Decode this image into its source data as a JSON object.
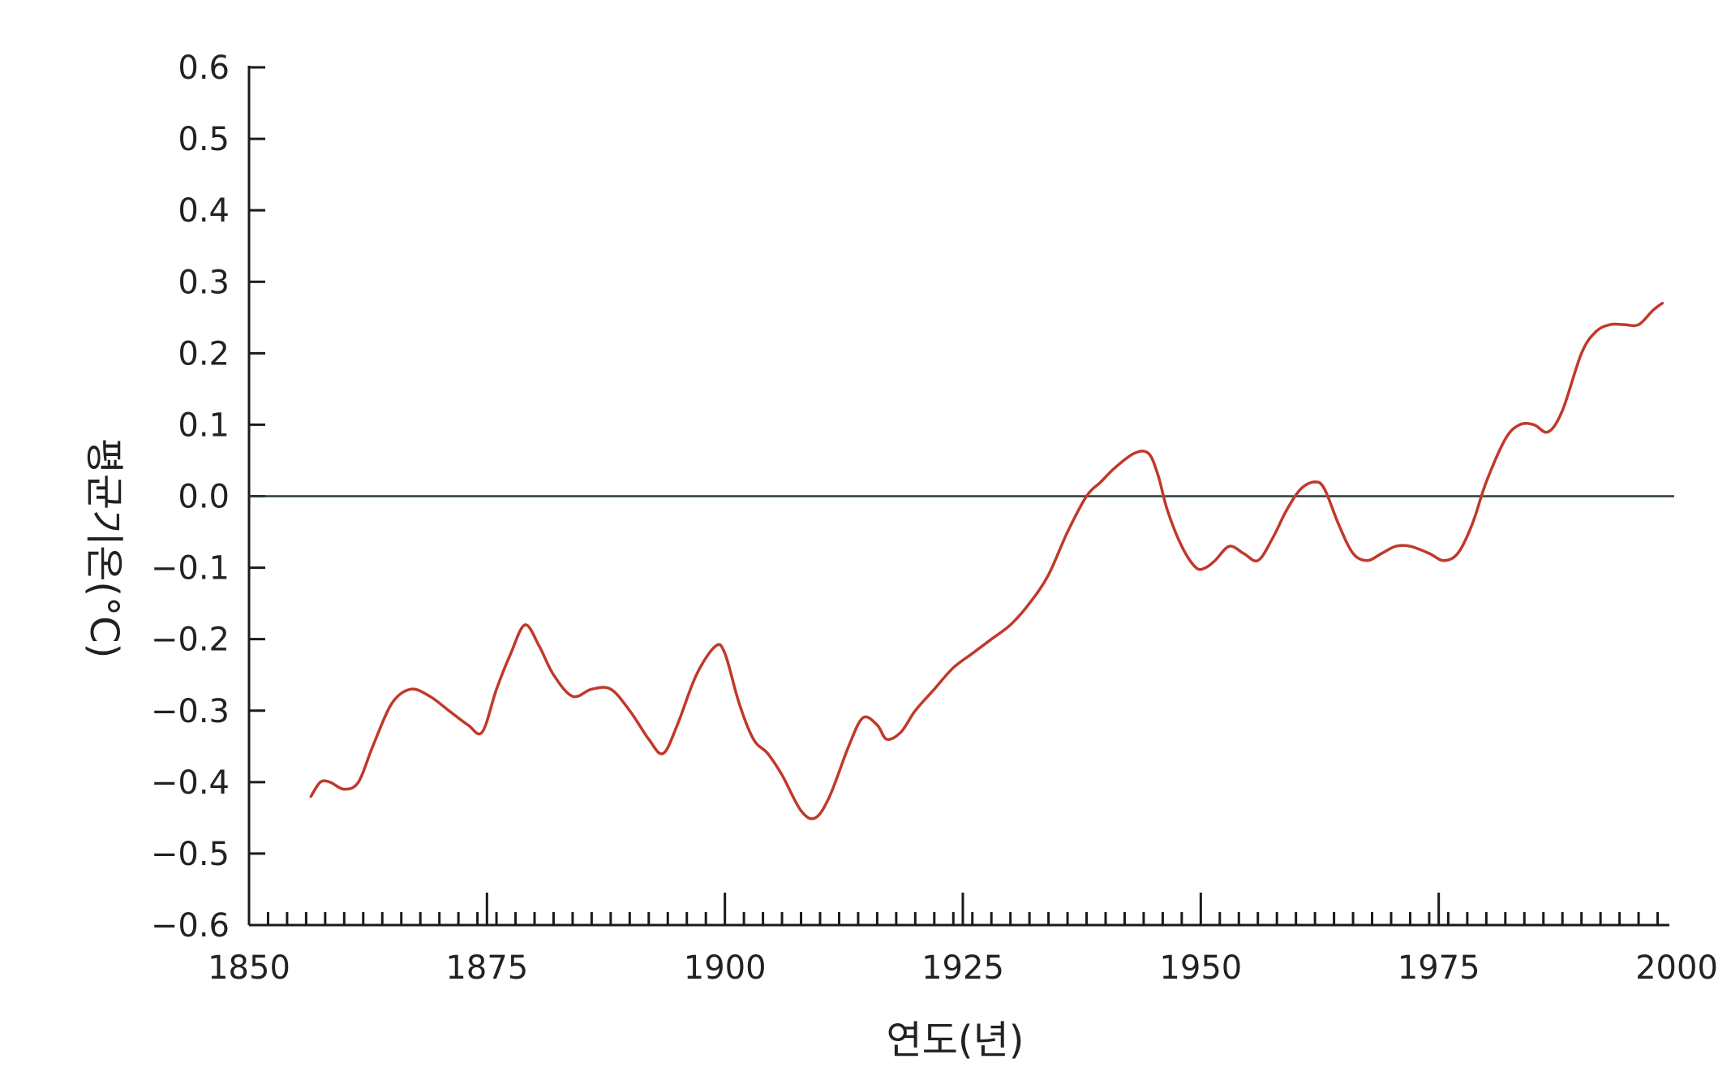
{
  "chart_data": {
    "type": "line",
    "title": "",
    "xlabel": "연도(년)",
    "ylabel": "평균기온(°C)",
    "xlim": [
      1850,
      2000
    ],
    "ylim": [
      -0.6,
      0.6
    ],
    "x_ticks": [
      "1850",
      "1875",
      "1900",
      "1925",
      "1950",
      "1975",
      "2000"
    ],
    "y_ticks": [
      "0.6",
      "0.5",
      "0.4",
      "0.3",
      "0.2",
      "0.1",
      "0.0",
      "−0.1",
      "−0.2",
      "−0.3",
      "−0.4",
      "−0.5",
      "−0.6"
    ],
    "reference_line": 0.0,
    "grid": false,
    "legend": "none",
    "series": [
      {
        "color": "#c0392b",
        "x": [
          1856.5,
          1857.5,
          1858.5,
          1860,
          1861.5,
          1863,
          1865,
          1867,
          1869,
          1871,
          1873,
          1874.5,
          1876,
          1877.5,
          1879,
          1880.5,
          1882,
          1884,
          1886,
          1888,
          1890,
          1892,
          1893.5,
          1895,
          1897,
          1899,
          1900,
          1901.5,
          1903,
          1904.5,
          1906,
          1908,
          1909.5,
          1911,
          1913,
          1914.5,
          1916,
          1917,
          1918.5,
          1920,
          1922,
          1924,
          1926,
          1928,
          1930,
          1932,
          1934,
          1936,
          1938,
          1939.5,
          1941,
          1943,
          1944.5,
          1945.5,
          1946.5,
          1948,
          1949.5,
          1950.5,
          1951.5,
          1953,
          1954.5,
          1956,
          1957.5,
          1959,
          1960.5,
          1962,
          1963,
          1964.5,
          1966,
          1967.5,
          1969,
          1970.5,
          1972,
          1974,
          1975.5,
          1977,
          1978.5,
          1980,
          1982,
          1983.5,
          1985,
          1986.5,
          1988,
          1990,
          1991.5,
          1993,
          1994.5,
          1996,
          1997.5,
          1998.5
        ],
        "y": [
          -0.42,
          -0.4,
          -0.4,
          -0.41,
          -0.4,
          -0.35,
          -0.29,
          -0.27,
          -0.28,
          -0.3,
          -0.32,
          -0.33,
          -0.27,
          -0.22,
          -0.18,
          -0.21,
          -0.25,
          -0.28,
          -0.27,
          -0.27,
          -0.3,
          -0.34,
          -0.36,
          -0.32,
          -0.25,
          -0.21,
          -0.22,
          -0.29,
          -0.34,
          -0.36,
          -0.39,
          -0.44,
          -0.45,
          -0.42,
          -0.35,
          -0.31,
          -0.32,
          -0.34,
          -0.33,
          -0.3,
          -0.27,
          -0.24,
          -0.22,
          -0.2,
          -0.18,
          -0.15,
          -0.11,
          -0.05,
          0.0,
          0.02,
          0.04,
          0.06,
          0.06,
          0.03,
          -0.02,
          -0.07,
          -0.1,
          -0.1,
          -0.09,
          -0.07,
          -0.08,
          -0.09,
          -0.06,
          -0.02,
          0.01,
          0.02,
          0.01,
          -0.04,
          -0.08,
          -0.09,
          -0.08,
          -0.07,
          -0.07,
          -0.08,
          -0.09,
          -0.08,
          -0.04,
          0.02,
          0.08,
          0.1,
          0.1,
          0.09,
          0.12,
          0.2,
          0.23,
          0.24,
          0.24,
          0.24,
          0.26,
          0.27
        ]
      }
    ]
  }
}
